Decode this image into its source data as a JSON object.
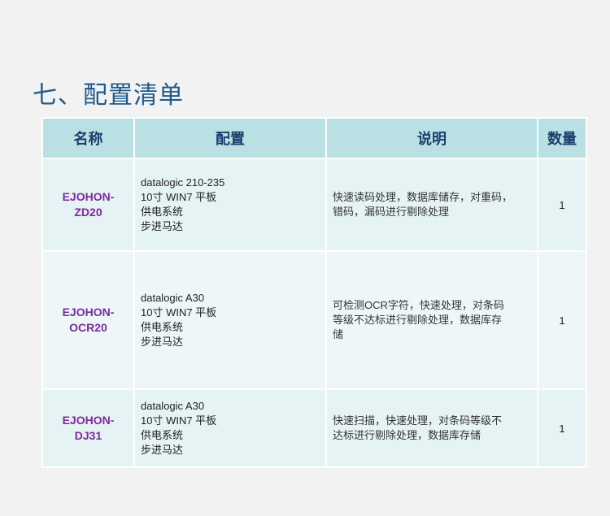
{
  "title": "七、配置清单",
  "headers": [
    "名称",
    "配置",
    "说明",
    "数量"
  ],
  "rows": [
    {
      "name": [
        "EJOHON-",
        "ZD20"
      ],
      "config": [
        "datalogic 210-235",
        "10寸 WIN7 平板",
        "供电系统",
        "步进马达"
      ],
      "desc": [
        "快速读码处理，数据库储存，对重码，",
        "错码，漏码进行剔除处理"
      ],
      "qty": "1"
    },
    {
      "name": [
        "EJOHON-",
        "OCR20"
      ],
      "config": [
        "datalogic A30",
        "10寸 WIN7 平板",
        "供电系统",
        "步进马达"
      ],
      "desc": [
        "可检测OCR字符，快速处理，对条码",
        "等级不达标进行剔除处理，数据库存",
        "储"
      ],
      "qty": "1"
    },
    {
      "name": [
        "EJOHON-",
        "DJ31"
      ],
      "config": [
        "datalogic A30",
        "10寸 WIN7 平板",
        "供电系统",
        "步进马达"
      ],
      "desc": [
        "快速扫描，快速处理，对条码等级不",
        "达标进行剔除处理，数据库存储"
      ],
      "qty": "1"
    }
  ]
}
